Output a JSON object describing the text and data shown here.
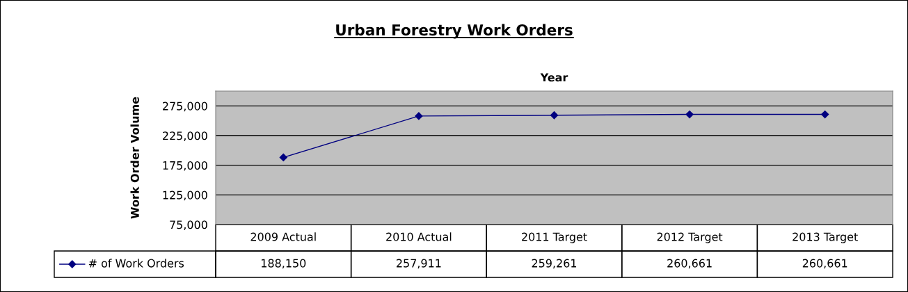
{
  "chart_data": {
    "type": "line",
    "title": "Urban Forestry Work Orders",
    "xlabel": "Year",
    "ylabel": "Work Order Volume",
    "categories": [
      "2009 Actual",
      "2010 Actual",
      "2011 Target",
      "2012 Target",
      "2013 Target"
    ],
    "series": [
      {
        "name": "# of Work Orders",
        "color": "#000080",
        "values": [
          188150,
          257911,
          259261,
          260661,
          260661
        ]
      }
    ],
    "ylim": [
      75000,
      300000
    ],
    "yticks": [
      {
        "value": 75000,
        "label": "75,000"
      },
      {
        "value": 125000,
        "label": "125,000"
      },
      {
        "value": 175000,
        "label": "175,000"
      },
      {
        "value": 225000,
        "label": "225,000"
      },
      {
        "value": 275000,
        "label": "275,000"
      }
    ],
    "grid": "y",
    "marker": "diamond",
    "line_style": "solid",
    "value_labels": [
      "188,150",
      "257,911",
      "259,261",
      "260,661",
      "260,661"
    ],
    "legend": "bottom left"
  }
}
